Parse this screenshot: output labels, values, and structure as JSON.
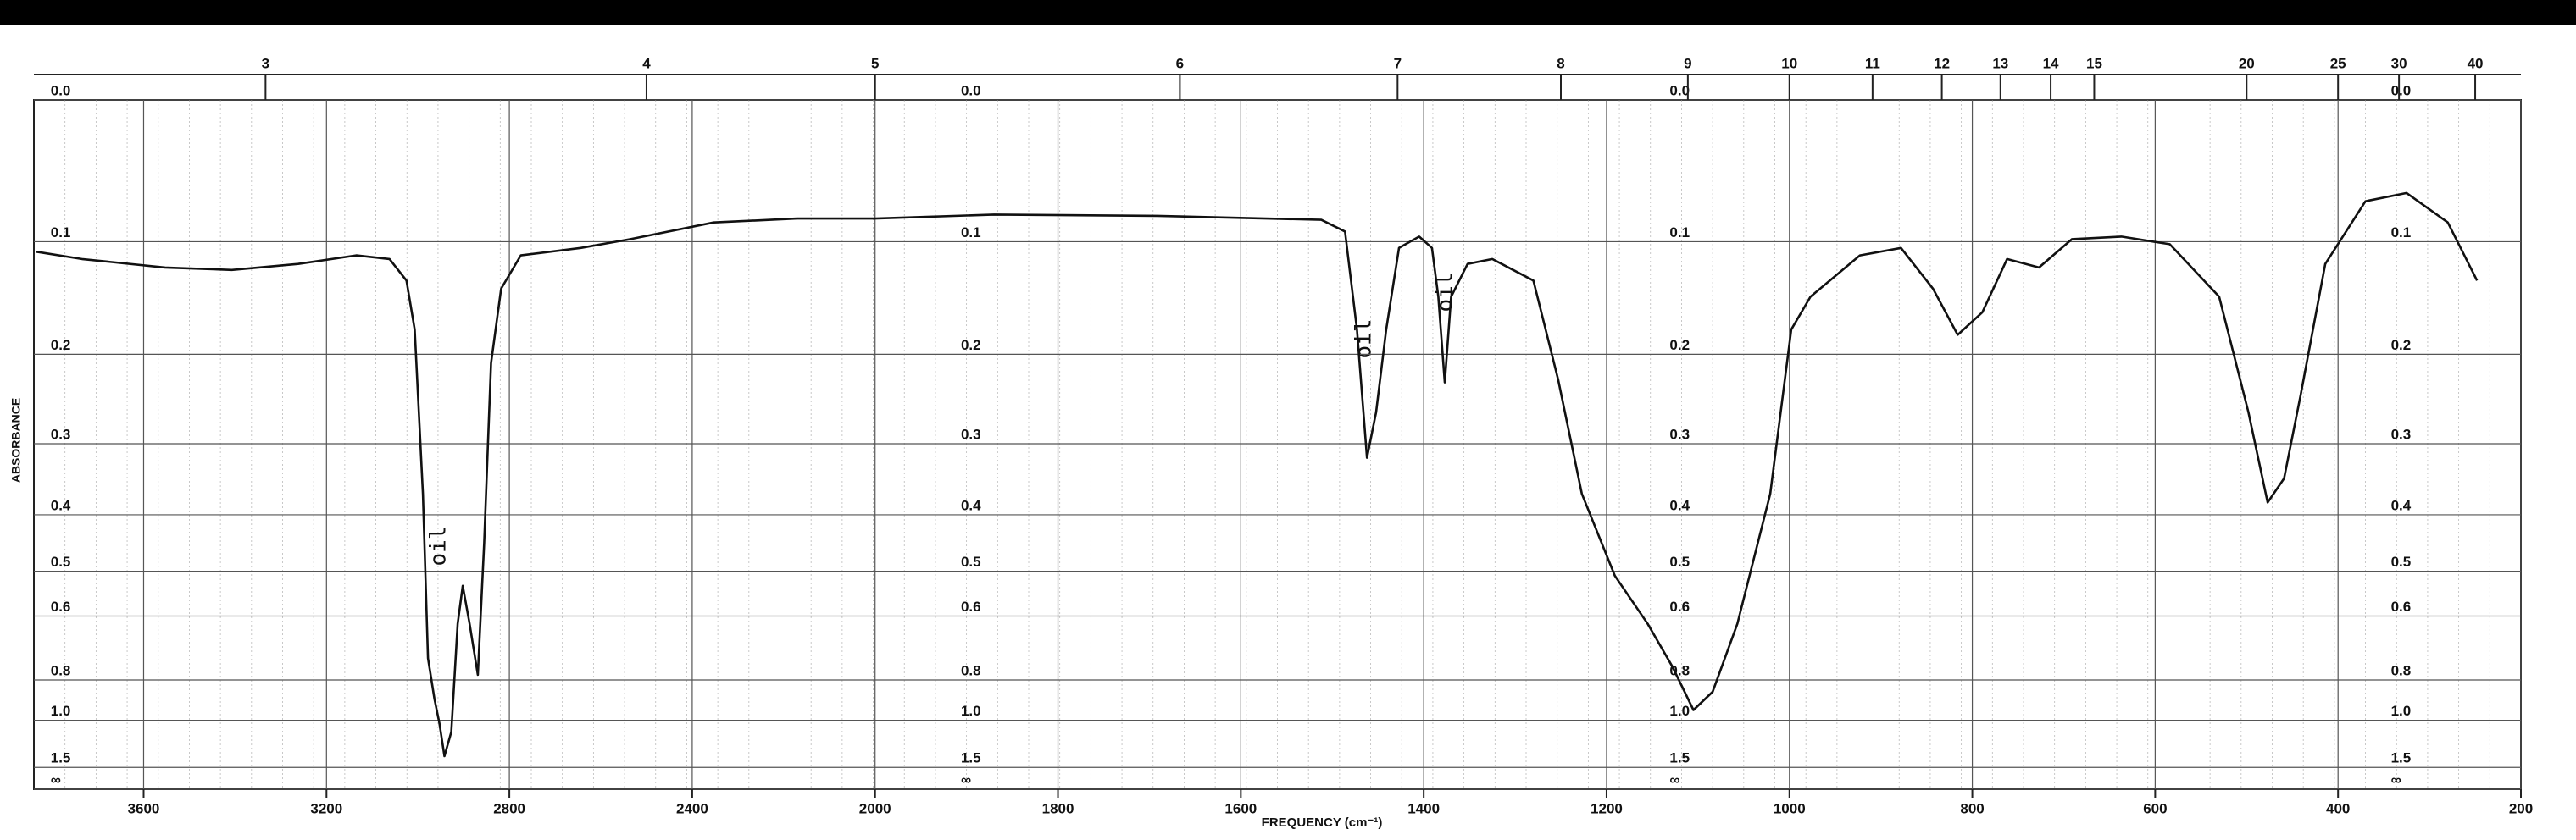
{
  "chart_data": {
    "type": "line",
    "xlabel": "FREQUENCY (cm⁻¹)",
    "ylabel": "ABSORBANCE",
    "y_scale": "absorbance",
    "x_scale_change_at": 2000,
    "xlim": [
      3840,
      200
    ],
    "ylim": [
      0,
      null
    ],
    "xticks": [
      3600,
      3200,
      2800,
      2400,
      2000,
      1800,
      1600,
      1400,
      1200,
      1000,
      800,
      600,
      400,
      200
    ],
    "xticks_top": [
      3,
      4,
      5,
      6,
      7,
      8,
      9,
      10,
      11,
      12,
      13,
      14,
      15,
      20,
      25,
      30,
      40
    ],
    "yticks": [
      {
        "value": 0,
        "label": "0.0"
      },
      0.1,
      0.2,
      0.3,
      0.4,
      0.5,
      0.6,
      0.8,
      {
        "value": 1,
        "label": "1.0"
      },
      1.5,
      {
        "value": null,
        "label": "∞"
      }
    ],
    "grid": true,
    "color": "#111111",
    "annotations": [
      "oil",
      "oil",
      "oil"
    ],
    "x": [
      3836,
      3735,
      3553,
      3407,
      3262,
      3135,
      3062,
      3025,
      3007,
      2989,
      2978,
      2964,
      2953,
      2942,
      2927,
      2913,
      2902,
      2887,
      2869,
      2855,
      2840,
      2818,
      2775,
      2644,
      2535,
      2353,
      2171,
      2000,
      1870,
      1691,
      1512,
      1486,
      1473,
      1462,
      1452,
      1441,
      1427,
      1405,
      1391,
      1384,
      1377,
      1370,
      1352,
      1325,
      1280,
      1253,
      1227,
      1191,
      1155,
      1128,
      1105,
      1084,
      1057,
      1021,
      998,
      977,
      923,
      878,
      843,
      816,
      789,
      762,
      727,
      691,
      637,
      584,
      530,
      498,
      477,
      459,
      441,
      414,
      370,
      325,
      280,
      248
    ],
    "values": [
      0.108,
      0.114,
      0.121,
      0.123,
      0.118,
      0.111,
      0.114,
      0.132,
      0.176,
      0.368,
      0.721,
      0.88,
      1.02,
      1.32,
      1.08,
      0.62,
      0.53,
      0.62,
      0.78,
      0.447,
      0.209,
      0.139,
      0.111,
      0.105,
      0.098,
      0.085,
      0.082,
      0.082,
      0.079,
      0.08,
      0.083,
      0.092,
      0.176,
      0.318,
      0.262,
      0.176,
      0.105,
      0.096,
      0.105,
      0.146,
      0.229,
      0.146,
      0.118,
      0.114,
      0.132,
      0.226,
      0.368,
      0.509,
      0.62,
      0.75,
      0.94,
      0.85,
      0.62,
      0.368,
      0.176,
      0.146,
      0.111,
      0.105,
      0.139,
      0.181,
      0.16,
      0.114,
      0.121,
      0.098,
      0.096,
      0.102,
      0.146,
      0.262,
      0.381,
      0.346,
      0.243,
      0.118,
      0.069,
      0.063,
      0.085,
      0.132
    ]
  }
}
